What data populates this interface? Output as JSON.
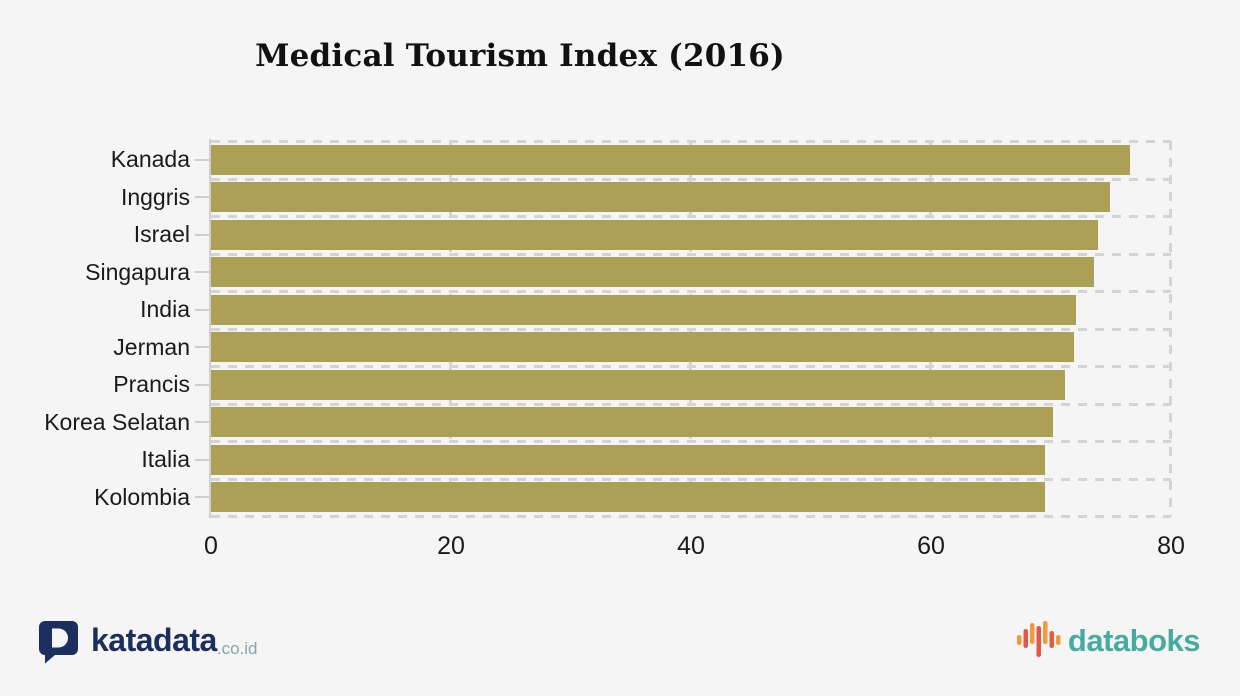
{
  "title": "Medical Tourism Index (2016)",
  "chart_data": {
    "type": "bar",
    "orientation": "horizontal",
    "title": "Medical Tourism Index (2016)",
    "categories": [
      "Kanada",
      "Inggris",
      "Israel",
      "Singapura",
      "India",
      "Jerman",
      "Prancis",
      "Korea Selatan",
      "Italia",
      "Kolombia"
    ],
    "values": [
      76.6,
      74.9,
      73.9,
      73.6,
      72.1,
      71.9,
      71.2,
      70.2,
      69.5,
      69.5
    ],
    "xlim": [
      0,
      80
    ],
    "x_ticks": [
      "0",
      "20",
      "40",
      "60",
      "80"
    ],
    "xlabel": "",
    "ylabel": "",
    "grid": "dashed-horizontal-and-vertical",
    "legend": "none",
    "bar_color": "#aca056"
  },
  "footer": {
    "katadata_brand": "katadata",
    "katadata_suffix": ".co.id",
    "databoks_brand": "databoks"
  },
  "colors": {
    "background": "#f5f5f5",
    "bar": "#aca056",
    "grid": "#d4d4d4",
    "text": "#1a1a1a",
    "katadata_navy": "#1c2e5e",
    "katadata_suffix_gray": "#8ba3b0",
    "databoks_teal": "#4aaaa0",
    "databoks_orange": "#f09a3d",
    "databoks_red": "#e25847"
  }
}
